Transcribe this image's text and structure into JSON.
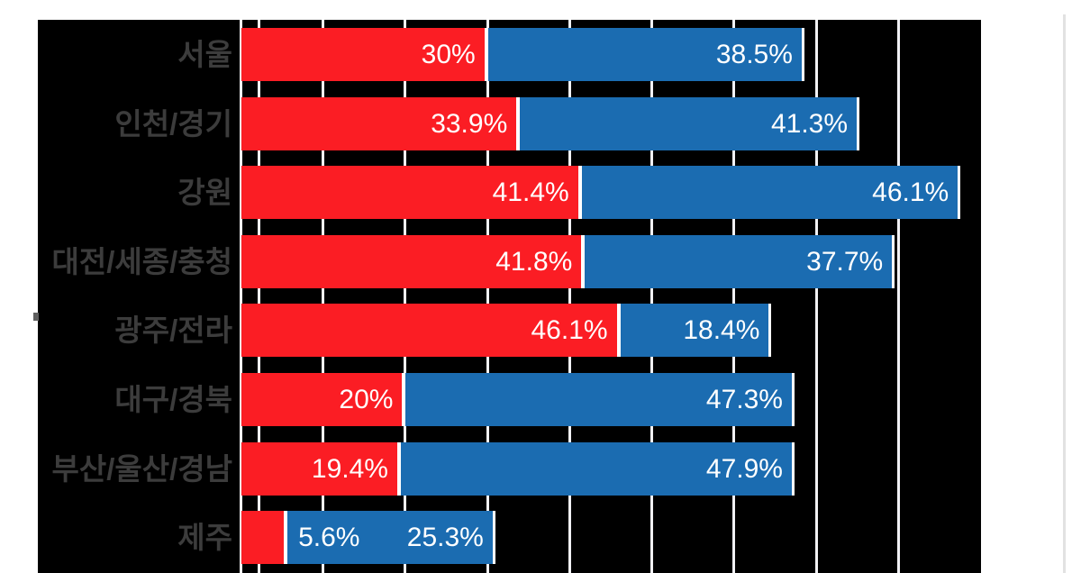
{
  "page": {
    "background_color": "#ffffff",
    "plot_background_color": "#000000",
    "gridline_color": "#f1f1f4",
    "category_label_color": "#3c3c3c",
    "value_label_color": "#ffffff",
    "right_edge_line_color": "#e2e2e2"
  },
  "chart_data": {
    "type": "bar",
    "orientation": "horizontal",
    "stacked": true,
    "title": "",
    "xlabel": "",
    "ylabel": "",
    "categories": [
      "서울",
      "인천/경기",
      "강원",
      "대전/세종/충청",
      "광주/전라",
      "대구/경북",
      "부산/울산/경남",
      "제주"
    ],
    "series": [
      {
        "name": "series-red",
        "color": "#fb1d24",
        "values": [
          30,
          33.9,
          41.4,
          41.8,
          46.1,
          20,
          19.4,
          5.6
        ],
        "labels": [
          "30%",
          "33.9%",
          "41.4%",
          "41.8%",
          "46.1%",
          "20%",
          "19.4%",
          "5.6%"
        ]
      },
      {
        "name": "series-blue",
        "color": "#1b6cb1",
        "values": [
          38.5,
          41.3,
          46.1,
          37.7,
          18.4,
          47.3,
          47.9,
          25.3
        ],
        "labels": [
          "38.5%",
          "41.3%",
          "46.1%",
          "37.7%",
          "18.4%",
          "47.3%",
          "47.9%",
          "25.3%"
        ]
      }
    ],
    "value_axis": {
      "min": 0,
      "max": 90,
      "major_unit": 10,
      "gridlines": true,
      "tick_labels_visible": false
    },
    "category_axis": {
      "position": "left",
      "labels_visible": true
    },
    "legend_visible": false,
    "data_label_position": "inside-end"
  }
}
